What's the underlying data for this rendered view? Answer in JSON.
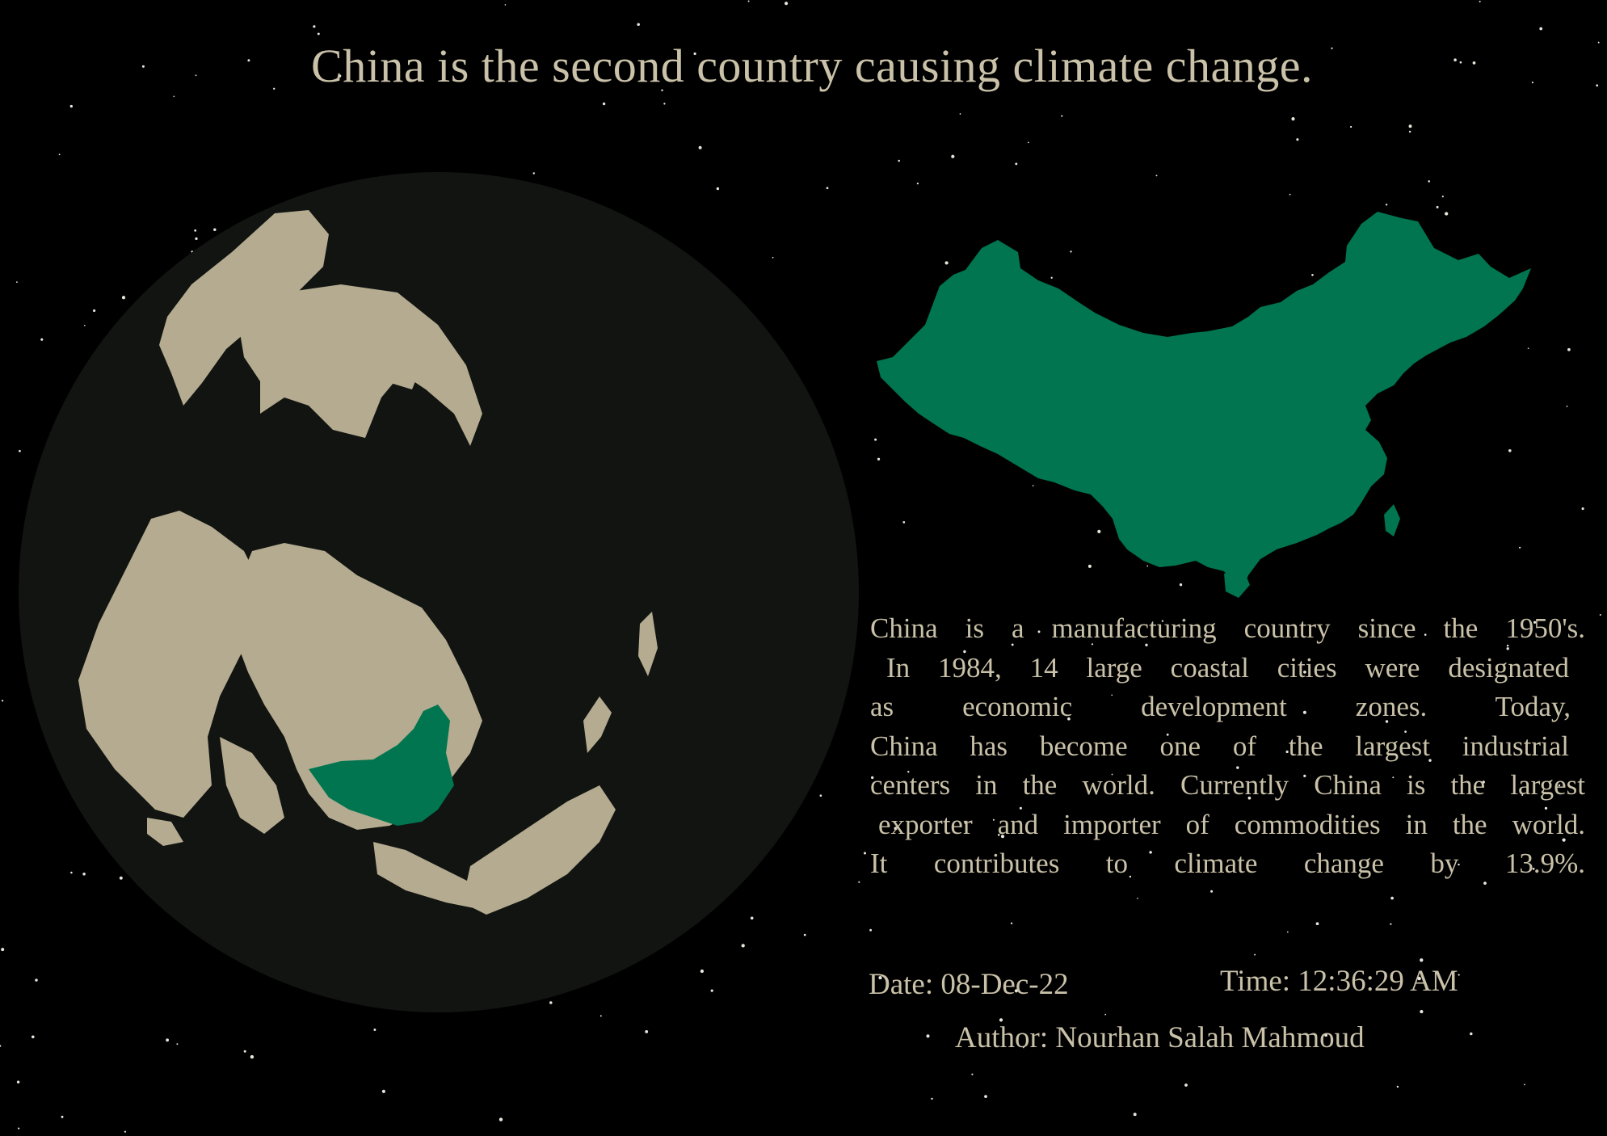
{
  "title": "China is the second country causing climate change.",
  "description_lines": [
    "China is a manufacturing country since the 1950's.",
    "In 1984, 14 large coastal cities were designated",
    "as economic development zones. Today,",
    "China has become one of the largest industrial",
    "centers in the world. Currently China is the largest",
    "exporter and importer of commodities in the world.",
    "It contributes to climate change by 13.9%."
  ],
  "date_text": "Date: 08-Dec-22",
  "time_text": "Time: 12:36:29 AM",
  "author_text": "Author: Nourhan Salah Mahmoud",
  "map": {
    "highlighted_country": "China",
    "projection": "orthographic (north-polar)",
    "highlight_color": "#00754f",
    "land_color": "#b4ab91",
    "ocean_color": "#111410",
    "background_color": "#000000",
    "text_color": "#c9c1a8"
  }
}
